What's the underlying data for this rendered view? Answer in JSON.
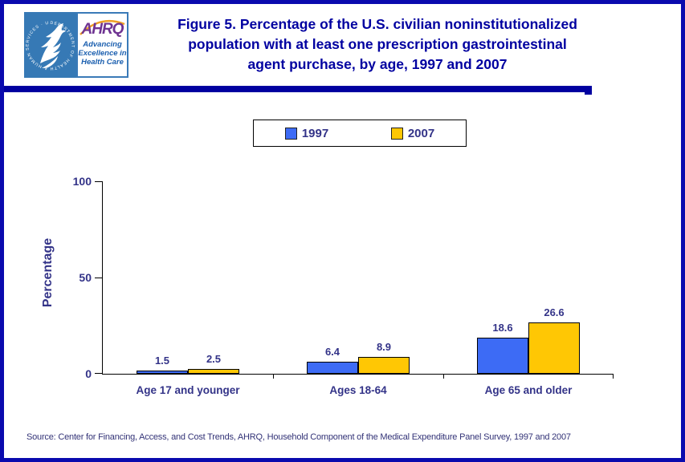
{
  "colors": {
    "frame": "#0a0aae",
    "title_navy": "#0000a0",
    "chart_text": "#333388",
    "hhs_blue": "#3679b5",
    "ahrq_purple": "#6f3492",
    "ahrq_tagline_blue": "#1b5faf",
    "arc_orange": "#f0a023",
    "bar_1997_blue": "#3d6bf5",
    "bar_2007_yellow": "#ffc704"
  },
  "header": {
    "seal_ring_text": "DEPARTMENT OF HEALTH & HUMAN SERVICES · USA",
    "ahrq_word": "AHRQ",
    "ahrq_tagline_lines": [
      "Advancing",
      "Excellence in",
      "Health Care"
    ],
    "title_lines": [
      "Figure 5. Percentage of the U.S. civilian noninstitutionalized",
      "population with at least one prescription gastrointestinal",
      "agent purchase, by age, 1997 and 2007"
    ]
  },
  "chart_data": {
    "type": "bar",
    "title": "Figure 5. Percentage of the U.S. civilian noninstitutionalized population with at least one prescription gastrointestinal agent purchase, by age, 1997 and 2007",
    "categories": [
      "Age 17 and younger",
      "Ages 18-64",
      "Age 65 and older"
    ],
    "series": [
      {
        "name": "1997",
        "color": "#3d6bf5",
        "values": [
          1.5,
          6.4,
          18.6
        ]
      },
      {
        "name": "2007",
        "color": "#ffc704",
        "values": [
          2.5,
          8.9,
          26.6
        ]
      }
    ],
    "xlabel": "",
    "ylabel": "Percentage",
    "ylim": [
      0,
      100
    ],
    "yticks": [
      0,
      50,
      100
    ],
    "grid": false,
    "value_labels": true,
    "legend_position": "top-center"
  },
  "source_note": "Source: Center for Financing, Access, and Cost Trends, AHRQ, Household Component of the Medical Expenditure Panel Survey, 1997 and 2007"
}
